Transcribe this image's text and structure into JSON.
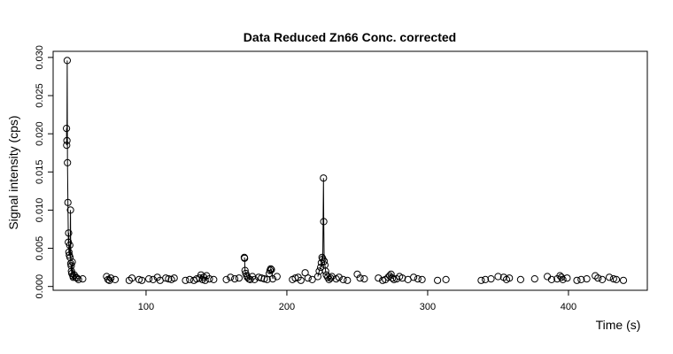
{
  "chart_data": {
    "type": "scatter",
    "title": "Data Reduced Zn66 Conc. corrected",
    "xlabel": "Time (s)",
    "ylabel": "Signal intensity (cps)",
    "xlim": [
      34,
      456
    ],
    "ylim": [
      -0.0005,
      0.0308
    ],
    "xticks": [
      100,
      200,
      300,
      400
    ],
    "xtick_labels": [
      "100",
      "200",
      "300",
      "400"
    ],
    "yticks": [
      0.0,
      0.005,
      0.01,
      0.015,
      0.02,
      0.025,
      0.03
    ],
    "ytick_labels": [
      "0.000",
      "0.005",
      "0.010",
      "0.015",
      "0.020",
      "0.025",
      "0.030"
    ],
    "grid": false,
    "legend": "none",
    "series": [
      {
        "marker": "open-circle",
        "line": "spikes",
        "points": [
          [
            43.5,
            0.0207
          ],
          [
            43.6,
            0.0185
          ],
          [
            43.8,
            0.0191
          ],
          [
            44.0,
            0.0296
          ],
          [
            44.2,
            0.0162
          ],
          [
            44.5,
            0.011
          ],
          [
            44.8,
            0.0058
          ],
          [
            45.0,
            0.007
          ],
          [
            45.2,
            0.0045
          ],
          [
            45.5,
            0.0041
          ],
          [
            45.8,
            0.0054
          ],
          [
            46.0,
            0.0038
          ],
          [
            46.3,
            0.01
          ],
          [
            46.5,
            0.003
          ],
          [
            46.8,
            0.0027
          ],
          [
            47.0,
            0.002
          ],
          [
            47.3,
            0.0017
          ],
          [
            47.6,
            0.0032
          ],
          [
            48.0,
            0.0014
          ],
          [
            48.3,
            0.0012
          ],
          [
            49.0,
            0.0015
          ],
          [
            50.0,
            0.0012
          ],
          [
            51.0,
            0.0011
          ],
          [
            52.0,
            0.0009
          ],
          [
            55.0,
            0.001
          ],
          [
            72.0,
            0.0013
          ],
          [
            73.0,
            0.0009
          ],
          [
            74.0,
            0.0008
          ],
          [
            75.0,
            0.0011
          ],
          [
            78.0,
            0.0009
          ],
          [
            88.0,
            0.0008
          ],
          [
            90.0,
            0.0011
          ],
          [
            95.0,
            0.0009
          ],
          [
            97.0,
            0.0008
          ],
          [
            102.0,
            0.001
          ],
          [
            105.0,
            0.0009
          ],
          [
            108.0,
            0.0012
          ],
          [
            110.0,
            0.0008
          ],
          [
            114.0,
            0.0011
          ],
          [
            116.0,
            0.001
          ],
          [
            118.0,
            0.0009
          ],
          [
            120.0,
            0.0011
          ],
          [
            128.0,
            0.0008
          ],
          [
            131.0,
            0.0009
          ],
          [
            134.0,
            0.0008
          ],
          [
            136.0,
            0.001
          ],
          [
            138.0,
            0.0011
          ],
          [
            139.0,
            0.0015
          ],
          [
            140.0,
            0.0009
          ],
          [
            141.0,
            0.0012
          ],
          [
            142.0,
            0.0008
          ],
          [
            143.0,
            0.0014
          ],
          [
            145.0,
            0.001
          ],
          [
            148.0,
            0.0009
          ],
          [
            157.0,
            0.0009
          ],
          [
            160.0,
            0.0012
          ],
          [
            163.0,
            0.001
          ],
          [
            166.0,
            0.0011
          ],
          [
            169.8,
            0.0038
          ],
          [
            170.0,
            0.0037
          ],
          [
            170.3,
            0.0021
          ],
          [
            170.8,
            0.0017
          ],
          [
            171.5,
            0.0014
          ],
          [
            172.0,
            0.0012
          ],
          [
            173.0,
            0.001
          ],
          [
            174.0,
            0.0009
          ],
          [
            175.5,
            0.0013
          ],
          [
            177.0,
            0.0009
          ],
          [
            180.0,
            0.0012
          ],
          [
            182.0,
            0.0011
          ],
          [
            184.0,
            0.001
          ],
          [
            186.0,
            0.0009
          ],
          [
            187.5,
            0.0017
          ],
          [
            188.0,
            0.0021
          ],
          [
            188.5,
            0.0023
          ],
          [
            189.0,
            0.0022
          ],
          [
            190.0,
            0.001
          ],
          [
            193.0,
            0.0013
          ],
          [
            204.0,
            0.0009
          ],
          [
            206.0,
            0.0011
          ],
          [
            208.0,
            0.0012
          ],
          [
            210.0,
            0.0008
          ],
          [
            213.0,
            0.0018
          ],
          [
            215.0,
            0.0011
          ],
          [
            218.0,
            0.0009
          ],
          [
            222.0,
            0.0013
          ],
          [
            223.0,
            0.002
          ],
          [
            224.0,
            0.0025
          ],
          [
            224.5,
            0.0031
          ],
          [
            225.0,
            0.0038
          ],
          [
            225.5,
            0.0036
          ],
          [
            226.0,
            0.0142
          ],
          [
            226.2,
            0.0085
          ],
          [
            226.5,
            0.0033
          ],
          [
            227.0,
            0.0028
          ],
          [
            227.5,
            0.002
          ],
          [
            228.0,
            0.0015
          ],
          [
            229.0,
            0.0012
          ],
          [
            230.0,
            0.0009
          ],
          [
            231.0,
            0.0011
          ],
          [
            232.0,
            0.0013
          ],
          [
            235.0,
            0.001
          ],
          [
            237.0,
            0.0012
          ],
          [
            240.0,
            0.0009
          ],
          [
            243.0,
            0.0008
          ],
          [
            250.0,
            0.0016
          ],
          [
            252.0,
            0.0011
          ],
          [
            255.0,
            0.001
          ],
          [
            265.0,
            0.0011
          ],
          [
            268.0,
            0.0008
          ],
          [
            270.0,
            0.0009
          ],
          [
            272.0,
            0.0012
          ],
          [
            273.0,
            0.0014
          ],
          [
            274.0,
            0.0016
          ],
          [
            275.0,
            0.0011
          ],
          [
            276.0,
            0.0009
          ],
          [
            278.0,
            0.001
          ],
          [
            280.0,
            0.0013
          ],
          [
            282.0,
            0.0011
          ],
          [
            286.0,
            0.0009
          ],
          [
            290.0,
            0.0012
          ],
          [
            293.0,
            0.001
          ],
          [
            296.0,
            0.0009
          ],
          [
            307.0,
            0.0008
          ],
          [
            313.0,
            0.0009
          ],
          [
            338.0,
            0.0008
          ],
          [
            341.0,
            0.0009
          ],
          [
            345.0,
            0.001
          ],
          [
            350.0,
            0.0013
          ],
          [
            354.0,
            0.0012
          ],
          [
            356.0,
            0.0009
          ],
          [
            358.0,
            0.0011
          ],
          [
            366.0,
            0.0009
          ],
          [
            376.0,
            0.001
          ],
          [
            385.0,
            0.0013
          ],
          [
            388.0,
            0.0009
          ],
          [
            392.0,
            0.001
          ],
          [
            394.0,
            0.0014
          ],
          [
            395.0,
            0.0012
          ],
          [
            396.0,
            0.0009
          ],
          [
            399.0,
            0.0011
          ],
          [
            406.0,
            0.0008
          ],
          [
            409.0,
            0.0009
          ],
          [
            413.0,
            0.001
          ],
          [
            419.0,
            0.0014
          ],
          [
            421.0,
            0.0011
          ],
          [
            424.0,
            0.0009
          ],
          [
            429.0,
            0.0012
          ],
          [
            432.0,
            0.001
          ],
          [
            434.0,
            0.0009
          ],
          [
            439.0,
            0.0008
          ]
        ]
      }
    ]
  }
}
